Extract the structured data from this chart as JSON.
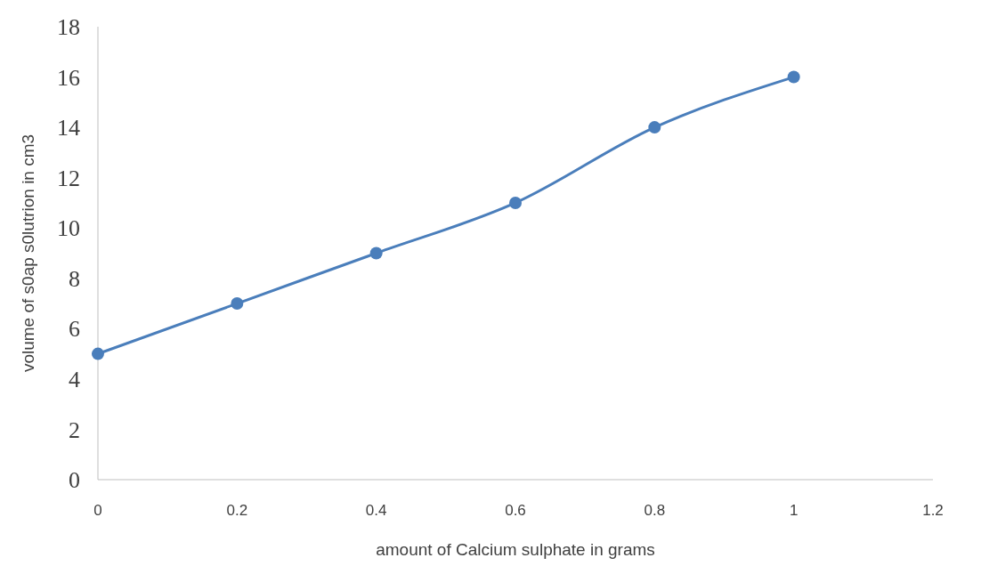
{
  "chart_data": {
    "type": "line",
    "xlabel": "amount of Calcium sulphate in grams",
    "ylabel": "volume of s0ap s0lutrion in cm3",
    "x": [
      0,
      0.2,
      0.4,
      0.6,
      0.8,
      1
    ],
    "series": [
      {
        "color": "#4a7ebb",
        "values": [
          5,
          7,
          9,
          11,
          14,
          16
        ]
      }
    ],
    "xlim": [
      0,
      1.2
    ],
    "xticks": [
      0,
      0.2,
      0.4,
      0.6,
      0.8,
      1,
      1.2
    ],
    "ylim": [
      0,
      18
    ],
    "yticks": [
      0,
      2,
      4,
      6,
      8,
      10,
      12,
      14,
      16,
      18
    ],
    "marker": "circle",
    "grid": false
  }
}
